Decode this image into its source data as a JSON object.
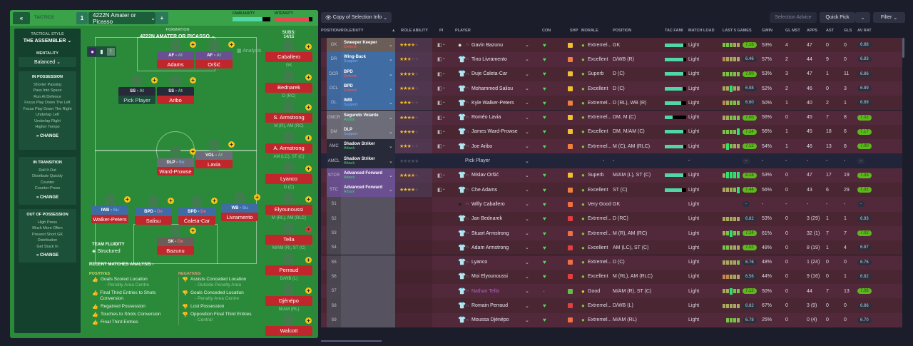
{
  "header": {
    "collapse": "«",
    "tactics_label": "TACTICS",
    "slot": "1",
    "tactic_name": "4222N Amater or Picasso",
    "add": "+",
    "familiarity_label": "FAMILIARITY",
    "familiarity": 0.8,
    "intensity_label": "INTENSITY",
    "intensity": 0.9
  },
  "sidebar": {
    "style_label": "TACTICAL STYLE",
    "style": "THE ASSEMBLER",
    "mentality_label": "MENTALITY",
    "mentality": "Balanced",
    "in_possession": {
      "title": "IN POSSESSION",
      "items": [
        "Shorter Passing",
        "Pass Into Space",
        "Run At Defence",
        "Focus Play Down The Left",
        "Focus Play Down The Right",
        "Underlap Left",
        "Underlap Right",
        "Higher Tempo"
      ],
      "change": "CHANGE"
    },
    "in_transition": {
      "title": "IN TRANSITION",
      "items": [
        "Roll It Out",
        "Distribute Quickly",
        "Counter",
        "Counter-Press"
      ],
      "change": "CHANGE"
    },
    "out_of_possession": {
      "title": "OUT OF POSSESSION",
      "items": [
        "High Press",
        "Much More Often",
        "Prevent Short GK",
        "Distribution",
        "Get Stuck In"
      ],
      "change": "CHANGE"
    }
  },
  "pitch": {
    "formation_label": "FORMATION",
    "formation": "4222N AMATER OR PICASSO",
    "subs_label": "SUBS:",
    "subs_count": "14/15",
    "analysis": "Analysis",
    "fluidity_label": "TEAM FLUIDITY",
    "fluidity": "Structured",
    "players": [
      {
        "role": "AF",
        "duty": "At",
        "name": "Adams",
        "type": "att"
      },
      {
        "role": "AF",
        "duty": "At",
        "name": "Oršić",
        "type": "att"
      },
      {
        "role": "SS",
        "duty": "At",
        "name": "Pick Player",
        "type": "amc"
      },
      {
        "role": "SS",
        "duty": "At",
        "name": "Aribo",
        "type": "amc"
      },
      {
        "role": "DLP",
        "duty": "Su",
        "name": "Ward-Prowse",
        "type": "dm"
      },
      {
        "role": "VOL",
        "duty": "At",
        "name": "Lavia",
        "type": "dm"
      },
      {
        "role": "IWB",
        "duty": "Su",
        "name": "Walker-Peters",
        "type": "def"
      },
      {
        "role": "BPD",
        "duty": "De",
        "name": "Salisu",
        "type": "def"
      },
      {
        "role": "BPD",
        "duty": "De",
        "name": "Ćaleta-Car",
        "type": "def"
      },
      {
        "role": "WB",
        "duty": "Su",
        "name": "Livramento",
        "type": "def"
      },
      {
        "role": "SK",
        "duty": "De",
        "name": "Bazunu",
        "type": "gk"
      }
    ],
    "subs": [
      {
        "name": "Caballero",
        "pos": "GK"
      },
      {
        "name": "Bednarek",
        "pos": "D (RC)"
      },
      {
        "name": "S. Armstrong",
        "pos": "M (R), AM (RC)"
      },
      {
        "name": "A. Armstrong",
        "pos": "AM (LC), ST (C)"
      },
      {
        "name": "Lyanco",
        "pos": "D (C)"
      },
      {
        "name": "Elyounoussi",
        "pos": "M (RL), AM (RLC)"
      },
      {
        "name": "Tella",
        "pos": "M/AM (R), ST (C)"
      },
      {
        "name": "Perraud",
        "pos": "D/WB (L)"
      },
      {
        "name": "Djénépo",
        "pos": "M/AM (RL)"
      },
      {
        "name": "Walcott",
        "pos": ""
      }
    ]
  },
  "analysis": {
    "title": "RECENT MATCHES ANALYSIS ›",
    "positives_label": "POSITIVES",
    "negatives_label": "NEGATIVES",
    "positives": [
      {
        "t": "Goals Scored Location",
        "s": "- Penalty Area Centre"
      },
      {
        "t": "Final Third Entries to Shots Conversion",
        "s": ""
      },
      {
        "t": "Regained Possession",
        "s": ""
      },
      {
        "t": "Touches to Shots Conversion",
        "s": ""
      },
      {
        "t": "Final Third Entries",
        "s": ""
      }
    ],
    "negatives": [
      {
        "t": "Assists Conceded Location",
        "s": "- Outside Penalty Area"
      },
      {
        "t": "Goals Conceded Location",
        "s": "- Penalty Area Centre"
      },
      {
        "t": "Lost Possession",
        "s": ""
      },
      {
        "t": "Opposition Final Third Entries",
        "s": "- Central"
      }
    ]
  },
  "toolbar": {
    "view": "Copy of Selection Info",
    "selection_advice": "Selection Advice",
    "quick_pick": "Quick Pick",
    "filter": "Filter"
  },
  "columns": [
    "POSITION/ROLE/DUTY",
    "ROLE ABILITY",
    "PI",
    "PLAYER",
    "CON",
    "SHP",
    "MORALE",
    "POSITION",
    "TAC FAMI",
    "MATCH LOAD",
    "LAST 5 GAMES",
    "GWIN",
    "GL MST",
    "APPS",
    "AST",
    "GLS",
    "AV RAT"
  ],
  "colors": {
    "gk": "#6b5d58",
    "def": "#3e6ca3",
    "dm": "#6c6d78",
    "amc": "#272a38",
    "att": "#6a5090",
    "sub": "#4b4852",
    "row": "#4a2632",
    "row_alt": "#52293a",
    "pill_green": "#5cb81c"
  },
  "rows": [
    {
      "pos": "GK",
      "role": "Sweeper Keeper",
      "duty": "Defend",
      "type": "gk",
      "stars": 3.5,
      "player": "Gavin Bazunu",
      "morale": "Extremel...",
      "position": "GK",
      "fam": 0.85,
      "load": "Light",
      "last5": "gggyy",
      "form": "7.16",
      "gwin": "53%",
      "glmst": "4",
      "apps": "47",
      "ast": "0",
      "gls": "0",
      "avrat": "6.88"
    },
    {
      "pos": "DR",
      "role": "Wing-Back",
      "duty": "Support",
      "type": "def",
      "stars": 2.5,
      "player": "Tino Livramento",
      "morale": "Excellent",
      "position": "D/WB (R)",
      "fam": 0.85,
      "load": "Light",
      "last5": "oyyyy",
      "form": "6.46",
      "gwin": "57%",
      "glmst": "2",
      "apps": "44",
      "ast": "9",
      "gls": "0",
      "avrat": "6.83"
    },
    {
      "pos": "DCR",
      "role": "BPD",
      "duty": "Defend",
      "type": "def",
      "stars": 3.5,
      "player": "Duje Ćaleta-Car",
      "morale": "Superb",
      "position": "D (C)",
      "fam": 0.85,
      "load": "Light",
      "last5": "ggggg",
      "form": "7.00",
      "gwin": "53%",
      "glmst": "3",
      "apps": "47",
      "ast": "1",
      "gls": "11",
      "avrat": "6.86"
    },
    {
      "pos": "DCL",
      "role": "BPD",
      "duty": "Defend",
      "type": "def",
      "stars": 3.5,
      "player": "Mohammed Salisu",
      "morale": "Excellent",
      "position": "D (C)",
      "fam": 0.82,
      "load": "Light",
      "last5": "yyGyy",
      "form": "6.98",
      "gwin": "52%",
      "glmst": "2",
      "apps": "46",
      "ast": "0",
      "gls": "3",
      "avrat": "6.89"
    },
    {
      "pos": "DL",
      "role": "IWB",
      "duty": "Support",
      "type": "def",
      "stars": 3,
      "player": "Kyle Walker-Peters",
      "morale": "Extremel...",
      "position": "D (RL), WB (R)",
      "fam": 0.75,
      "load": "Light",
      "last5": "oyggg",
      "form": "6.80",
      "gwin": "50%",
      "glmst": "1",
      "apps": "40",
      "ast": "2",
      "gls": "1",
      "avrat": "6.89"
    },
    {
      "pos": "DMCR",
      "role": "Segundo Volante",
      "duty": "Attack",
      "type": "dm",
      "stars": 3.5,
      "player": "Roméo Lavia",
      "morale": "Extremel...",
      "position": "DM, M (C)",
      "fam": 0.35,
      "load": "Light",
      "last5": "yyggg",
      "form": "7.00",
      "gwin": "56%",
      "glmst": "0",
      "apps": "45",
      "ast": "7",
      "gls": "8",
      "avrat": "7.02"
    },
    {
      "pos": "DM",
      "role": "DLP",
      "duty": "Support",
      "type": "dm",
      "stars": 4,
      "player": "James Ward-Prowse",
      "morale": "Excellent",
      "position": "DM, M/AM (C)",
      "fam": 0.85,
      "load": "Light",
      "last5": "ggggG",
      "form": "7.24",
      "gwin": "56%",
      "glmst": "1",
      "apps": "45",
      "ast": "18",
      "gls": "6",
      "avrat": "7.17"
    },
    {
      "pos": "AMC",
      "role": "Shadow Striker",
      "duty": "Attack",
      "type": "amc",
      "stars": 3,
      "player": "Joe Aribo",
      "morale": "Extremel...",
      "position": "M (C), AM (RLC)",
      "fam": 0.85,
      "load": "Light",
      "last5": "oGgyy",
      "form": "7.12",
      "gwin": "54%",
      "glmst": "1",
      "apps": "46",
      "ast": "13",
      "gls": "8",
      "avrat": "7.00"
    },
    {
      "pos": "AMCL",
      "role": "Shadow Striker",
      "duty": "Attack",
      "type": "amc",
      "stars": 0,
      "player": "Pick Player",
      "morale": "-",
      "position": "-",
      "fam": null,
      "load": "-",
      "last5": "",
      "form": "-",
      "gwin": "-",
      "glmst": "-",
      "apps": "-",
      "ast": "-",
      "gls": "-",
      "avrat": "-",
      "empty": true
    },
    {
      "pos": "STCR",
      "role": "Advanced Forward",
      "duty": "Attack",
      "type": "att",
      "stars": 3.5,
      "player": "Mislav Oršić",
      "morale": "Superb",
      "position": "M/AM (L), ST (C)",
      "fam": 0.85,
      "load": "Light",
      "last5": "yGGGG",
      "form": "8.18",
      "gwin": "53%",
      "glmst": "0",
      "apps": "47",
      "ast": "17",
      "gls": "19",
      "avrat": "7.33"
    },
    {
      "pos": "STC",
      "role": "Advanced Forward",
      "duty": "Attack",
      "type": "att",
      "stars": 3.5,
      "player": "Che Adams",
      "morale": "Excellent",
      "position": "ST (C)",
      "fam": 0.8,
      "load": "Light",
      "last5": "yyygG",
      "form": "7.44",
      "gwin": "56%",
      "glmst": "0",
      "apps": "43",
      "ast": "6",
      "gls": "29",
      "avrat": "7.32"
    },
    {
      "pos": "S1",
      "player": "Willy Caballero",
      "morale": "Very Good",
      "position": "GK",
      "load": "Light",
      "last5": "",
      "form": "-",
      "gwin": "-",
      "glmst": "-",
      "apps": "-",
      "ast": "-",
      "gls": "-",
      "avrat": "-",
      "gk": true
    },
    {
      "pos": "S2",
      "player": "Jan Bednarek",
      "morale": "Extremel...",
      "position": "D (RC)",
      "load": "Light",
      "last5": "yyyyy",
      "form": "6.82",
      "gwin": "53%",
      "glmst": "0",
      "apps": "3 (29)",
      "ast": "1",
      "gls": "1",
      "avrat": "6.93"
    },
    {
      "pos": "S3",
      "player": "Stuart Armstrong",
      "morale": "Extremel...",
      "position": "M (R), AM (RC)",
      "load": "Light",
      "last5": "ygGgg",
      "form": "7.14",
      "gwin": "61%",
      "glmst": "0",
      "apps": "32 (1)",
      "ast": "7",
      "gls": "7",
      "avrat": "7.02"
    },
    {
      "pos": "S4",
      "player": "Adam Armstrong",
      "morale": "Excellent",
      "position": "AM (LC), ST (C)",
      "load": "Light",
      "last5": "ggyyy",
      "form": "7.02",
      "gwin": "48%",
      "glmst": "0",
      "apps": "8 (19)",
      "ast": "1",
      "gls": "4",
      "avrat": "6.87"
    },
    {
      "pos": "S5",
      "player": "Lyanco",
      "morale": "Extremel...",
      "position": "D (C)",
      "load": "Light",
      "last5": "yyyyg",
      "form": "6.76",
      "gwin": "48%",
      "glmst": "0",
      "apps": "1 (24)",
      "ast": "0",
      "gls": "0",
      "avrat": "6.76"
    },
    {
      "pos": "S6",
      "player": "Moi Elyounoussi",
      "morale": "Excellent",
      "position": "M (RL), AM (RLC)",
      "load": "Light",
      "last5": "ooyyy",
      "form": "6.56",
      "gwin": "44%",
      "glmst": "0",
      "apps": "9 (16)",
      "ast": "0",
      "gls": "1",
      "avrat": "6.82"
    },
    {
      "pos": "S7",
      "player": "Nathan Tella",
      "morale": "Good",
      "position": "M/AM (R), ST (C)",
      "load": "Light",
      "last5": "yyGgg",
      "form": "7.12",
      "gwin": "50%",
      "glmst": "0",
      "apps": "44",
      "ast": "7",
      "gls": "13",
      "avrat": "7.08",
      "injured": true
    },
    {
      "pos": "S8",
      "player": "Romain Perraud",
      "morale": "Extremel...",
      "position": "D/WB (L)",
      "load": "Light",
      "last5": "yyyyy",
      "form": "6.82",
      "gwin": "67%",
      "glmst": "0",
      "apps": "3 (9)",
      "ast": "0",
      "gls": "0",
      "avrat": "6.86"
    },
    {
      "pos": "S9",
      "player": "Moussa Djénépo",
      "morale": "Extremel...",
      "position": "M/AM (RL)",
      "load": "Light",
      "last5": "gggg",
      "form": "6.78",
      "gwin": "25%",
      "glmst": "0",
      "apps": "0 (4)",
      "ast": "0",
      "gls": "0",
      "avrat": "6.70"
    }
  ]
}
